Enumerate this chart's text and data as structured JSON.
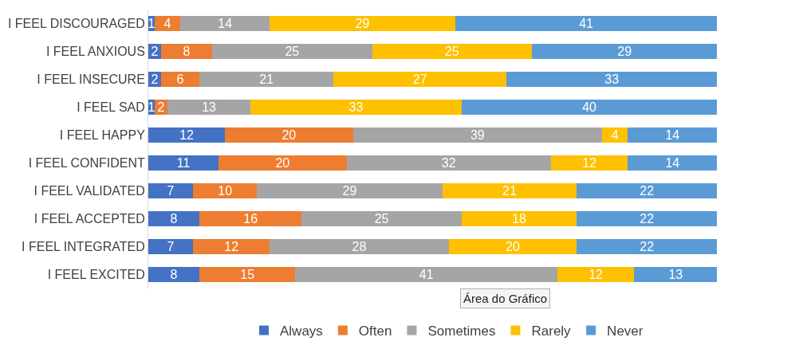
{
  "chart_data": {
    "type": "bar",
    "orientation": "horizontal",
    "stacked": true,
    "data_labels": true,
    "legend": "bottom",
    "categories": [
      "I FEEL DISCOURAGED",
      "I FEEL ANXIOUS",
      "I FEEL INSECURE",
      "I FEEL SAD",
      "I FEEL HAPPY",
      "I FEEL CONFIDENT",
      "I FEEL VALIDATED",
      "I FEEL ACCEPTED",
      "I FEEL INTEGRATED",
      "I FEEL EXCITED"
    ],
    "series": [
      {
        "name": "Always",
        "color": "#4472c4",
        "values": [
          1,
          2,
          2,
          1,
          12,
          11,
          7,
          8,
          7,
          8
        ]
      },
      {
        "name": "Often",
        "color": "#ed7d31",
        "values": [
          4,
          8,
          6,
          2,
          20,
          20,
          10,
          16,
          12,
          15
        ]
      },
      {
        "name": "Sometimes",
        "color": "#a5a5a5",
        "values": [
          14,
          25,
          21,
          13,
          39,
          32,
          29,
          25,
          28,
          41
        ]
      },
      {
        "name": "Rarely",
        "color": "#ffc000",
        "values": [
          29,
          25,
          27,
          33,
          4,
          12,
          21,
          18,
          20,
          12
        ]
      },
      {
        "name": "Never",
        "color": "#5b9bd5",
        "values": [
          41,
          29,
          33,
          40,
          14,
          14,
          22,
          22,
          22,
          13
        ]
      }
    ],
    "annotations": [
      "Área do Gráfico"
    ]
  }
}
